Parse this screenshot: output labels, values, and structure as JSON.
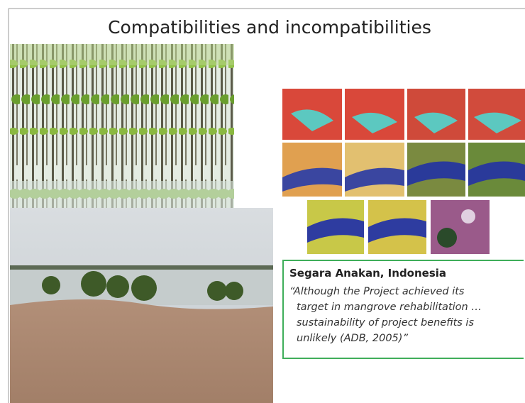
{
  "slide": {
    "title": "Compatibilities and incompatibilities",
    "caption": {
      "heading": "Segara Anakan, Indonesia",
      "quote_lines": [
        "“Although the Project achieved its",
        "target in mangrove rehabilitation …",
        "sustainability of project benefits is",
        "unlikely (ADB, 2005)”"
      ]
    }
  }
}
